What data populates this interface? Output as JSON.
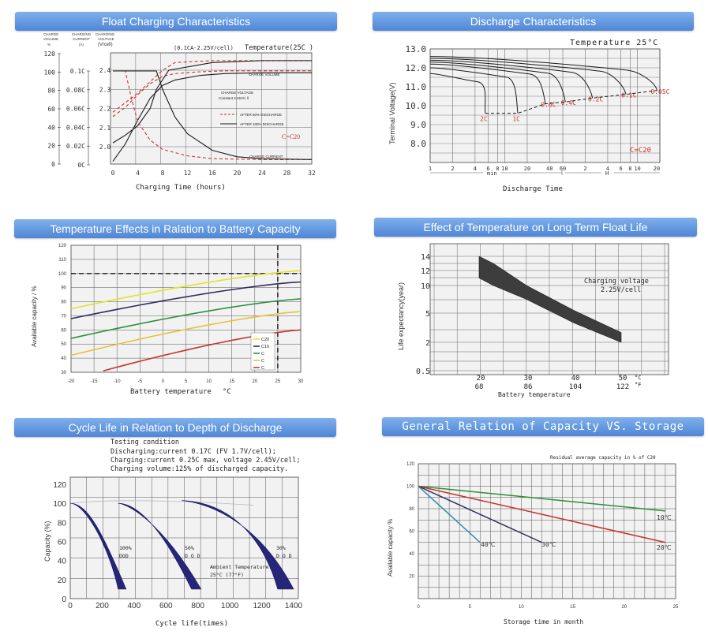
{
  "panels": {
    "float": {
      "title": "Float Charging Characteristics",
      "y1_header": [
        "CHARGE",
        "VOLUME",
        "%"
      ],
      "y2_header": [
        "CHARGING",
        "CURRENT",
        "(A)"
      ],
      "y3_header": [
        "CHARGING",
        "VOLTAGE",
        "(V/cell)"
      ],
      "condition": "(0.1CA-2.25V/cell)",
      "temperature": "Temperature(25C )",
      "xlabel": "Charging Time (hours)",
      "label_charge_volume": "CHARGE VOLUME",
      "label_charge_voltage": "CHARGE VOLTAGE",
      "label_constant": "Constant 2.45V/c ll",
      "legend_50": "AFTER 50% DISCHARGE",
      "legend_100": "AFTER 100% DISCHARGE",
      "c_label": "C=C20",
      "label_charge_current": "CHARGE CURRENT",
      "colors": {
        "red": "#c8332f",
        "black": "#1a1a1a"
      }
    },
    "discharge": {
      "title": "Discharge Characteristics",
      "temperature": "Temperature 25°C",
      "ylabel": "Terminal Voltage(V)",
      "xlabel": "Discharge Time",
      "unit_min": "min",
      "unit_h": "H",
      "c_label": "C=C20",
      "rate_labels": [
        "2C",
        "1C",
        "0.6C",
        "0.4C",
        "0.2C",
        "0.1C",
        "0.05C"
      ],
      "color": "#c8332f"
    },
    "temperature": {
      "title": "Temperature Effects in Ralation to Battery Capacity",
      "ylabel": "Available capacity / %",
      "xlabel": "Battery temperature",
      "xunit": "°C",
      "legend": [
        "C20",
        "C10",
        "C",
        "C",
        "C"
      ]
    },
    "floatlife": {
      "title": "Effect of Temperature on Long Term Float Life",
      "ylabel": "Life expectancy(year)",
      "xlabel": "Battery temperature",
      "note": [
        "Charging voltage",
        "2.25V/cell"
      ],
      "c_unit": "°C",
      "f_unit": "°F",
      "f_ticks": [
        "68",
        "86",
        "104",
        "122"
      ]
    },
    "cycle": {
      "title": "Cycle Life in Relation to Depth of Discharge",
      "cond": [
        "Testing condition",
        "Discharging:current 0.17C (FV 1.7V/cell);",
        "Charging:current 0.25C max, voltage 2.45V/cell;",
        "Charging volume:125% of discharged capacity."
      ],
      "ylabel": "Capacity (%)",
      "xlabel": "Cycle life(times)",
      "dod_labels": [
        [
          "100%",
          "DOD"
        ],
        [
          "50%",
          "D O D"
        ],
        [
          "30%",
          "D O D"
        ]
      ],
      "ambient": [
        "Ambient Temperature:",
        "25°C (77°F)"
      ],
      "color": "#25257a"
    },
    "storage": {
      "title": "General Relation of Capacity VS. Storage",
      "note": "Residual average capacity in % of C20",
      "ylabel": "Available capacity %",
      "xlabel": "Storage time in month"
    }
  },
  "chart_data": [
    {
      "type": "line",
      "title": "Float Charging Characteristics",
      "xlabel": "Charging Time (hours)",
      "x_ticks": [
        0,
        4,
        8,
        12,
        16,
        20,
        24,
        28,
        32
      ],
      "xlim": [
        0,
        32
      ],
      "axes": {
        "charge_volume_pct": {
          "ticks": [
            0,
            20,
            40,
            60,
            80,
            100,
            120
          ]
        },
        "charging_current_A": {
          "ticks": [
            "0C",
            "0.02C",
            "0.04C",
            "0.06C",
            "0.08C",
            "0.1C"
          ]
        },
        "charging_voltage_V_per_cell": {
          "ticks": [
            2.0,
            2.1,
            2.2,
            2.3,
            2.4
          ]
        }
      },
      "series": [
        {
          "name": "charge volume after 50% discharge",
          "style": "dashed-red",
          "x": [
            0,
            2,
            4,
            6,
            8,
            10,
            14,
            18,
            24,
            32
          ],
          "y": [
            52,
            62,
            76,
            88,
            96,
            99,
            101,
            102,
            102,
            102
          ]
        },
        {
          "name": "charge volume after 100% discharge",
          "style": "solid-black",
          "x": [
            0,
            2,
            4,
            6,
            8,
            10,
            14,
            18,
            24,
            32
          ],
          "y": [
            3,
            22,
            48,
            72,
            86,
            92,
            97,
            99,
            100,
            100
          ]
        },
        {
          "name": "charge voltage after 50% discharge",
          "style": "dashed-red",
          "x": [
            0,
            2,
            4,
            6,
            8,
            10,
            16,
            24,
            32
          ],
          "y": [
            2.18,
            2.23,
            2.28,
            2.34,
            2.4,
            2.44,
            2.45,
            2.45,
            2.45
          ]
        },
        {
          "name": "charge voltage after 100% discharge",
          "style": "solid-black",
          "x": [
            0,
            2,
            4,
            6,
            7,
            9,
            16,
            24,
            32
          ],
          "y": [
            2.02,
            2.06,
            2.11,
            2.2,
            2.3,
            2.4,
            2.44,
            2.45,
            2.45
          ]
        },
        {
          "name": "charge current after 50% discharge",
          "style": "dashed-red",
          "x": [
            0,
            2,
            3,
            4,
            6,
            8,
            12,
            16,
            24,
            32
          ],
          "y_C": [
            0.1,
            0.1,
            0.07,
            0.045,
            0.025,
            0.015,
            0.008,
            0.005,
            0.004,
            0.004
          ]
        },
        {
          "name": "charge current after 100% discharge",
          "style": "solid-black",
          "x": [
            0,
            7,
            8,
            10,
            12,
            16,
            20,
            24,
            32
          ],
          "y_C": [
            0.1,
            0.1,
            0.08,
            0.05,
            0.032,
            0.014,
            0.007,
            0.005,
            0.004
          ]
        }
      ]
    },
    {
      "type": "line",
      "title": "Discharge Characteristics",
      "ylabel": "Terminal Voltage(V)",
      "xlabel": "Discharge Time",
      "ylim": [
        7.0,
        13.0
      ],
      "y_ticks": [
        8.0,
        9.0,
        10.0,
        11.0,
        12.0,
        13.0
      ],
      "x_scale": "log",
      "x_ticks_min": [
        1,
        2,
        4,
        6,
        8,
        10,
        20,
        40,
        60
      ],
      "x_ticks_h": [
        2,
        4,
        6,
        8,
        10,
        20
      ],
      "series": [
        {
          "name": "2C",
          "end_time_min": 5.5,
          "end_voltage": 9.6
        },
        {
          "name": "1C",
          "end_time_min": 15,
          "end_voltage": 9.6
        },
        {
          "name": "0.6C",
          "end_time_min": 35,
          "end_voltage": 10.1
        },
        {
          "name": "0.4C",
          "end_time_min": 65,
          "end_voltage": 10.2
        },
        {
          "name": "0.2C",
          "end_time_min": 150,
          "end_voltage": 10.4
        },
        {
          "name": "0.1C",
          "end_time_min": 420,
          "end_voltage": 10.6
        },
        {
          "name": "0.05C",
          "end_time_min": 1100,
          "end_voltage": 10.8
        }
      ]
    },
    {
      "type": "line",
      "title": "Temperature Effects in Ralation to Battery Capacity",
      "xlabel": "Battery temperature",
      "ylabel": "Available capacity / %",
      "x_ticks": [
        -20,
        -15,
        -10,
        -5,
        0,
        5,
        10,
        15,
        20,
        25,
        30
      ],
      "y_ticks": [
        30,
        40,
        50,
        60,
        70,
        80,
        90,
        100,
        110,
        120
      ],
      "xlim": [
        -20,
        30
      ],
      "ylim": [
        30,
        120
      ],
      "reference_lines": {
        "y": 100,
        "x": 25
      },
      "series": [
        {
          "name": "C20",
          "color": "#e6e22a",
          "x": [
            -20,
            30
          ],
          "y": [
            75,
            102
          ]
        },
        {
          "name": "C10",
          "color": "#2d2d5e",
          "x": [
            -20,
            30
          ],
          "y": [
            68,
            94
          ]
        },
        {
          "name": "C",
          "color": "#2f8f3a",
          "x": [
            -20,
            30
          ],
          "y": [
            54,
            82
          ]
        },
        {
          "name": "C",
          "color": "#e8c23a",
          "x": [
            -20,
            30
          ],
          "y": [
            42,
            73
          ]
        },
        {
          "name": "C",
          "color": "#c8332f",
          "x": [
            -13,
            30
          ],
          "y": [
            31,
            60
          ]
        }
      ]
    },
    {
      "type": "area",
      "title": "Effect of Temperature on Long Term Float Life",
      "xlabel": "Battery temperature",
      "ylabel": "Life expectancy(year)",
      "y_scale": "log",
      "y_ticks": [
        0.5,
        2,
        5,
        10,
        12,
        14
      ],
      "x_ticks": [
        20,
        30,
        40,
        50
      ],
      "x_ticks_F": [
        68,
        86,
        104,
        122
      ],
      "band": {
        "x": [
          20,
          23,
          30,
          40,
          50
        ],
        "y_upper": [
          14,
          13,
          10,
          5.5,
          3
        ],
        "y_lower": [
          11,
          10,
          7.5,
          4,
          2
        ]
      }
    },
    {
      "type": "area",
      "title": "Cycle Life in Relation to Depth of Discharge",
      "xlabel": "Cycle life(times)",
      "ylabel": "Capacity (%)",
      "x_ticks": [
        0,
        200,
        400,
        600,
        800,
        1000,
        1200,
        1400
      ],
      "y_ticks": [
        0,
        20,
        40,
        60,
        80,
        100,
        120
      ],
      "xlim": [
        0,
        1400
      ],
      "ylim": [
        0,
        120
      ],
      "series": [
        {
          "name": "100% DOD",
          "x_upper": [
            0,
            100,
            250,
            300
          ],
          "y_upper": [
            100,
            100,
            50,
            10
          ],
          "x_lower": [
            350,
            200,
            110
          ],
          "y_lower": [
            10,
            70,
            100
          ]
        },
        {
          "name": "50% DOD",
          "x_upper": [
            300,
            500,
            700,
            760
          ],
          "y_upper": [
            100,
            100,
            30,
            10
          ],
          "x_lower": [
            820,
            560,
            340
          ],
          "y_lower": [
            10,
            85,
            100
          ]
        },
        {
          "name": "30% DOD",
          "x_upper": [
            700,
            1100,
            1250,
            1300
          ],
          "y_upper": [
            103,
            100,
            40,
            10
          ],
          "x_lower": [
            1400,
            1150,
            800
          ],
          "y_lower": [
            10,
            90,
            101
          ]
        }
      ]
    },
    {
      "type": "line",
      "title": "General Relation of Capacity VS. Storage",
      "xlabel": "Storage time in month",
      "ylabel": "Available capacity %",
      "x_ticks": [
        0,
        5,
        10,
        15,
        20,
        25
      ],
      "y_ticks": [
        20,
        40,
        60,
        80,
        100,
        120
      ],
      "xlim": [
        0,
        25
      ],
      "ylim": [
        0,
        120
      ],
      "series": [
        {
          "name": "10℃",
          "color": "#2f8f3a",
          "x": [
            0,
            24
          ],
          "y": [
            100,
            78
          ]
        },
        {
          "name": "20℃",
          "color": "#c8332f",
          "x": [
            0,
            24
          ],
          "y": [
            100,
            50
          ]
        },
        {
          "name": "30℃",
          "color": "#2d2d5e",
          "x": [
            0,
            12
          ],
          "y": [
            100,
            50
          ]
        },
        {
          "name": "40℃",
          "color": "#2f88a8",
          "x": [
            0,
            6
          ],
          "y": [
            100,
            50
          ]
        }
      ]
    }
  ]
}
